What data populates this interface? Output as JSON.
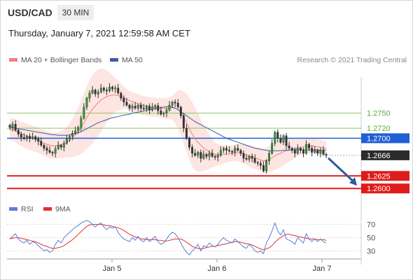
{
  "header": {
    "symbol": "USD/CAD",
    "timeframe": "30 MIN",
    "datetime": "Thursday, January 7, 2021 12:59:58 AM CET"
  },
  "legend": {
    "ma20": "MA 20 + Bollinger Bands",
    "ma50": "MA 50",
    "rsi": "RSI",
    "ma9": "9MA",
    "credit": "Research © 2021 Trading Central"
  },
  "colors": {
    "ma20": "#f08080",
    "ma50": "#3a5fa8",
    "band_fill": "#fde0dc",
    "green_level": "#8cc462",
    "blue_level": "#1f5fd6",
    "red_level": "#e01b1b",
    "last_price_bg": "#2b2b2b",
    "arrow": "#2c5c9e",
    "rsi": "#5b7fd6",
    "rsi_ma": "#e03030"
  },
  "chart_data": [
    {
      "type": "candlestick",
      "title": "",
      "x_tick_labels": [
        "Jan 5",
        "Jan 6",
        "Jan 7"
      ],
      "ylim": [
        1.2578,
        1.2822
      ],
      "levels": [
        {
          "label": "1.2750",
          "value": 1.275,
          "kind": "resistance",
          "color": "#8cc462"
        },
        {
          "label": "1.2720",
          "value": 1.272,
          "kind": "resistance",
          "color": "#8cc462"
        },
        {
          "label": "1.2700",
          "value": 1.27,
          "kind": "pivot",
          "color": "#1f5fd6"
        },
        {
          "label": "1.2666",
          "value": 1.2666,
          "kind": "last",
          "color": "#2b2b2b"
        },
        {
          "label": "1.2625",
          "value": 1.2625,
          "kind": "support",
          "color": "#e01b1b"
        },
        {
          "label": "1.2600",
          "value": 1.26,
          "kind": "support",
          "color": "#e01b1b"
        }
      ],
      "close": [
        1.2722,
        1.2728,
        1.2716,
        1.2708,
        1.2702,
        1.2699,
        1.2704,
        1.27,
        1.2703,
        1.2698,
        1.2694,
        1.2686,
        1.268,
        1.2676,
        1.2672,
        1.267,
        1.2679,
        1.2686,
        1.2682,
        1.269,
        1.2698,
        1.2704,
        1.271,
        1.2715,
        1.2722,
        1.274,
        1.2762,
        1.278,
        1.279,
        1.2796,
        1.2788,
        1.2792,
        1.28,
        1.2796,
        1.2794,
        1.2802,
        1.2798,
        1.28,
        1.279,
        1.278,
        1.2772,
        1.2766,
        1.276,
        1.2764,
        1.276,
        1.2766,
        1.276,
        1.2758,
        1.2764,
        1.2756,
        1.2762,
        1.2765,
        1.2755,
        1.2748,
        1.275,
        1.2756,
        1.2766,
        1.2772,
        1.277,
        1.2762,
        1.2745,
        1.272,
        1.27,
        1.2682,
        1.267,
        1.2666,
        1.2672,
        1.266,
        1.2668,
        1.2664,
        1.267,
        1.2664,
        1.2662,
        1.2666,
        1.2676,
        1.268,
        1.2676,
        1.2674,
        1.2672,
        1.268,
        1.2676,
        1.267,
        1.266,
        1.2658,
        1.2664,
        1.266,
        1.2652,
        1.265,
        1.2646,
        1.2635,
        1.2655,
        1.267,
        1.269,
        1.2712,
        1.27,
        1.2692,
        1.2705,
        1.2685,
        1.268,
        1.2676,
        1.267,
        1.268,
        1.2676,
        1.267,
        1.2688,
        1.268,
        1.2672,
        1.2676,
        1.267,
        1.2676,
        1.2668,
        1.2666
      ],
      "ma20": [
        1.2718,
        1.2717,
        1.2715,
        1.2712,
        1.2709,
        1.2706,
        1.2704,
        1.2702,
        1.27,
        1.2698,
        1.2696,
        1.2693,
        1.269,
        1.2688,
        1.2686,
        1.2685,
        1.2685,
        1.2686,
        1.2687,
        1.2689,
        1.2692,
        1.2696,
        1.2701,
        1.2707,
        1.2714,
        1.2722,
        1.2731,
        1.2741,
        1.275,
        1.2758,
        1.2765,
        1.2771,
        1.2776,
        1.278,
        1.2783,
        1.2785,
        1.2786,
        1.2786,
        1.2785,
        1.2783,
        1.2781,
        1.2778,
        1.2775,
        1.2773,
        1.2771,
        1.2769,
        1.2767,
        1.2765,
        1.2764,
        1.2763,
        1.2762,
        1.2762,
        1.2761,
        1.276,
        1.2759,
        1.2759,
        1.276,
        1.2761,
        1.276,
        1.2757,
        1.2751,
        1.2742,
        1.2731,
        1.2719,
        1.2708,
        1.2699,
        1.2692,
        1.2686,
        1.2681,
        1.2677,
        1.2673,
        1.267,
        1.2668,
        1.2667,
        1.2667,
        1.2668,
        1.2668,
        1.2669,
        1.267,
        1.2671,
        1.2671,
        1.267,
        1.2669,
        1.2667,
        1.2665,
        1.2663,
        1.2661,
        1.2659,
        1.2657,
        1.2655,
        1.2656,
        1.2658,
        1.2661,
        1.2665,
        1.2668,
        1.267,
        1.2673,
        1.2675,
        1.2676,
        1.2678,
        1.2679,
        1.2681,
        1.2682,
        1.2683,
        1.2684,
        1.2685,
        1.2685,
        1.2684,
        1.2683,
        1.2682,
        1.268,
        1.2679
      ],
      "ma50": [
        1.2722,
        1.2721,
        1.272,
        1.2719,
        1.2718,
        1.2717,
        1.2716,
        1.2715,
        1.2714,
        1.2713,
        1.2712,
        1.2711,
        1.271,
        1.2709,
        1.2708,
        1.2707,
        1.2707,
        1.2706,
        1.2706,
        1.2706,
        1.2706,
        1.2707,
        1.2708,
        1.2709,
        1.2711,
        1.2713,
        1.2716,
        1.2719,
        1.2722,
        1.2725,
        1.2728,
        1.2731,
        1.2733,
        1.2735,
        1.2737,
        1.2739,
        1.2741,
        1.2742,
        1.2743,
        1.2745,
        1.2746,
        1.2747,
        1.2748,
        1.275,
        1.2751,
        1.2752,
        1.2753,
        1.2754,
        1.2756,
        1.2757,
        1.2758,
        1.2759,
        1.276,
        1.2761,
        1.2762,
        1.2763,
        1.2763,
        1.2762,
        1.276,
        1.2757,
        1.2753,
        1.2749,
        1.2745,
        1.2741,
        1.2737,
        1.2733,
        1.273,
        1.2727,
        1.2724,
        1.2721,
        1.2718,
        1.2715,
        1.2712,
        1.2709,
        1.2706,
        1.2703,
        1.27,
        1.2698,
        1.2696,
        1.2694,
        1.2692,
        1.269,
        1.2688,
        1.2686,
        1.2684,
        1.2682,
        1.268,
        1.2679,
        1.2678,
        1.2677,
        1.2676,
        1.2675,
        1.2675,
        1.2675,
        1.2675,
        1.2675,
        1.2676,
        1.2676,
        1.2676,
        1.2677,
        1.2677,
        1.2677,
        1.2677,
        1.2677,
        1.2677,
        1.2677,
        1.2677,
        1.2677,
        1.2677,
        1.2676,
        1.2676,
        1.2676
      ],
      "bb_halfwidth": [
        0.0022,
        0.0022,
        0.0023,
        0.0024,
        0.0024,
        0.0025,
        0.0025,
        0.0025,
        0.0025,
        0.0025,
        0.0025,
        0.0025,
        0.0025,
        0.0026,
        0.0026,
        0.0026,
        0.0026,
        0.0026,
        0.0027,
        0.0028,
        0.003,
        0.0034,
        0.0038,
        0.0043,
        0.0048,
        0.0053,
        0.0058,
        0.0062,
        0.0066,
        0.0068,
        0.0068,
        0.0066,
        0.0063,
        0.0058,
        0.0052,
        0.0046,
        0.004,
        0.0034,
        0.003,
        0.0026,
        0.0022,
        0.002,
        0.0019,
        0.0019,
        0.0019,
        0.0019,
        0.0019,
        0.0019,
        0.0019,
        0.0019,
        0.0019,
        0.0019,
        0.0019,
        0.002,
        0.002,
        0.0021,
        0.0022,
        0.0024,
        0.003,
        0.0038,
        0.0045,
        0.0052,
        0.0058,
        0.0062,
        0.0064,
        0.0062,
        0.0058,
        0.0052,
        0.0046,
        0.004,
        0.0034,
        0.0028,
        0.0024,
        0.0021,
        0.0019,
        0.0018,
        0.0017,
        0.0016,
        0.0016,
        0.0016,
        0.0017,
        0.0018,
        0.0019,
        0.002,
        0.0021,
        0.0022,
        0.0022,
        0.0023,
        0.0024,
        0.0025,
        0.0025,
        0.0026,
        0.0027,
        0.0028,
        0.0028,
        0.0028,
        0.0027,
        0.0025,
        0.0023,
        0.0021,
        0.0019,
        0.0017,
        0.0016,
        0.0015,
        0.0015,
        0.0015,
        0.0015,
        0.0015,
        0.0015,
        0.0015,
        0.0015,
        0.0015
      ],
      "projection": {
        "from": 1.2666,
        "to": 1.26
      }
    },
    {
      "type": "line",
      "title": "",
      "series_labels": [
        "RSI",
        "9MA"
      ],
      "y_ticks": [
        70,
        50,
        30
      ],
      "ylim": [
        20,
        80
      ],
      "rsi": [
        48,
        52,
        56,
        48,
        44,
        42,
        46,
        40,
        44,
        42,
        38,
        34,
        30,
        32,
        28,
        30,
        40,
        46,
        42,
        50,
        54,
        58,
        62,
        66,
        68,
        72,
        74,
        76,
        74,
        70,
        66,
        70,
        72,
        66,
        62,
        66,
        64,
        66,
        58,
        52,
        48,
        46,
        44,
        50,
        46,
        52,
        46,
        44,
        50,
        44,
        48,
        52,
        44,
        40,
        42,
        48,
        54,
        58,
        56,
        50,
        42,
        34,
        28,
        24,
        30,
        34,
        40,
        30,
        38,
        36,
        42,
        38,
        36,
        40,
        46,
        50,
        46,
        44,
        42,
        48,
        44,
        40,
        36,
        34,
        40,
        36,
        30,
        28,
        30,
        26,
        42,
        50,
        60,
        72,
        60,
        54,
        62,
        48,
        46,
        44,
        40,
        50,
        46,
        42,
        56,
        48,
        44,
        48,
        44,
        48,
        44,
        42
      ],
      "ma9": [
        48,
        49,
        50,
        50,
        49,
        48,
        47,
        46,
        45,
        44,
        42,
        40,
        38,
        37,
        35,
        34,
        34,
        35,
        36,
        38,
        41,
        44,
        47,
        51,
        55,
        59,
        63,
        67,
        69,
        70,
        70,
        70,
        70,
        69,
        68,
        68,
        67,
        66,
        65,
        63,
        61,
        58,
        55,
        53,
        51,
        50,
        48,
        48,
        47,
        47,
        47,
        47,
        46,
        46,
        45,
        45,
        46,
        47,
        48,
        48,
        48,
        46,
        43,
        40,
        37,
        35,
        34,
        33,
        34,
        35,
        36,
        37,
        37,
        38,
        39,
        40,
        41,
        42,
        43,
        44,
        44,
        43,
        42,
        41,
        40,
        39,
        37,
        35,
        33,
        32,
        33,
        35,
        38,
        43,
        47,
        50,
        53,
        55,
        55,
        54,
        53,
        52,
        51,
        50,
        49,
        48,
        48,
        48,
        47,
        47,
        47,
        46
      ]
    }
  ]
}
